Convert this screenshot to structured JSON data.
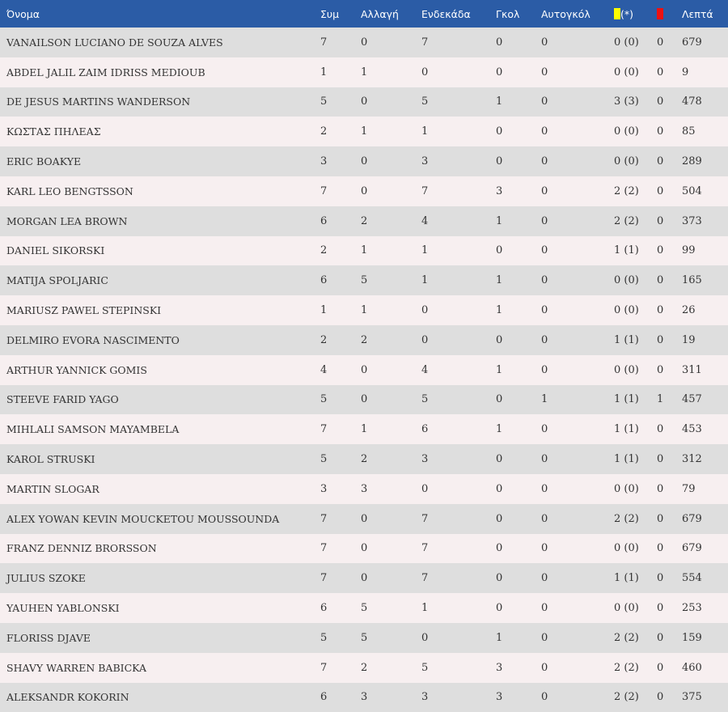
{
  "headers": {
    "name": "Όνομα",
    "appearances": "Συμ",
    "substitutions": "Αλλαγή",
    "starts": "Ενδεκάδα",
    "goals": "Γκολ",
    "own_goals": "Αυτογκόλ",
    "yellow_suffix": "(*)",
    "minutes": "Λεπτά"
  },
  "colors": {
    "header_bg": "#2b5ca6",
    "row_odd": "#dedede",
    "row_even": "#f7eff0",
    "yellow_card": "#ffff00",
    "red_card": "#ee1111"
  },
  "players": [
    {
      "name": "VANAILSON LUCIANO DE SOUZA ALVES",
      "apps": "7",
      "subs": "0",
      "starts": "7",
      "goals": "0",
      "own": "0",
      "yellow": "0 (0)",
      "red": "0",
      "minutes": "679"
    },
    {
      "name": "ABDEL JALIL ZAIM IDRISS MEDIOUB",
      "apps": "1",
      "subs": "1",
      "starts": "0",
      "goals": "0",
      "own": "0",
      "yellow": "0 (0)",
      "red": "0",
      "minutes": "9"
    },
    {
      "name": "DE JESUS MARTINS WANDERSON",
      "apps": "5",
      "subs": "0",
      "starts": "5",
      "goals": "1",
      "own": "0",
      "yellow": "3 (3)",
      "red": "0",
      "minutes": "478"
    },
    {
      "name": "ΚΩΣΤΑΣ ΠΗΛΕΑΣ",
      "apps": "2",
      "subs": "1",
      "starts": "1",
      "goals": "0",
      "own": "0",
      "yellow": "0 (0)",
      "red": "0",
      "minutes": "85"
    },
    {
      "name": "ERIC BOAKYE",
      "apps": "3",
      "subs": "0",
      "starts": "3",
      "goals": "0",
      "own": "0",
      "yellow": "0 (0)",
      "red": "0",
      "minutes": "289"
    },
    {
      "name": "KARL LEO BENGTSSON",
      "apps": "7",
      "subs": "0",
      "starts": "7",
      "goals": "3",
      "own": "0",
      "yellow": "2 (2)",
      "red": "0",
      "minutes": "504"
    },
    {
      "name": "MORGAN LEA BROWN",
      "apps": "6",
      "subs": "2",
      "starts": "4",
      "goals": "1",
      "own": "0",
      "yellow": "2 (2)",
      "red": "0",
      "minutes": "373"
    },
    {
      "name": "DANIEL SIKORSKI",
      "apps": "2",
      "subs": "1",
      "starts": "1",
      "goals": "0",
      "own": "0",
      "yellow": "1 (1)",
      "red": "0",
      "minutes": "99"
    },
    {
      "name": "MATIJA SPOLJARIC",
      "apps": "6",
      "subs": "5",
      "starts": "1",
      "goals": "1",
      "own": "0",
      "yellow": "0 (0)",
      "red": "0",
      "minutes": "165"
    },
    {
      "name": "MARIUSZ PAWEL STEPINSKI",
      "apps": "1",
      "subs": "1",
      "starts": "0",
      "goals": "1",
      "own": "0",
      "yellow": "0 (0)",
      "red": "0",
      "minutes": "26"
    },
    {
      "name": "DELMIRO EVORA NASCIMENTO",
      "apps": "2",
      "subs": "2",
      "starts": "0",
      "goals": "0",
      "own": "0",
      "yellow": "1 (1)",
      "red": "0",
      "minutes": "19"
    },
    {
      "name": "ARTHUR YANNICK GOMIS",
      "apps": "4",
      "subs": "0",
      "starts": "4",
      "goals": "1",
      "own": "0",
      "yellow": "0 (0)",
      "red": "0",
      "minutes": "311"
    },
    {
      "name": "STEEVE FARID YAGO",
      "apps": "5",
      "subs": "0",
      "starts": "5",
      "goals": "0",
      "own": "1",
      "yellow": "1 (1)",
      "red": "1",
      "minutes": "457"
    },
    {
      "name": "MIHLALI SAMSON MAYAMBELA",
      "apps": "7",
      "subs": "1",
      "starts": "6",
      "goals": "1",
      "own": "0",
      "yellow": "1 (1)",
      "red": "0",
      "minutes": "453"
    },
    {
      "name": "KAROL STRUSKI",
      "apps": "5",
      "subs": "2",
      "starts": "3",
      "goals": "0",
      "own": "0",
      "yellow": "1 (1)",
      "red": "0",
      "minutes": "312"
    },
    {
      "name": "MARTIN SLOGAR",
      "apps": "3",
      "subs": "3",
      "starts": "0",
      "goals": "0",
      "own": "0",
      "yellow": "0 (0)",
      "red": "0",
      "minutes": "79"
    },
    {
      "name": "ALEX YOWAN KEVIN MOUCKETOU MOUSSOUNDA",
      "apps": "7",
      "subs": "0",
      "starts": "7",
      "goals": "0",
      "own": "0",
      "yellow": "2 (2)",
      "red": "0",
      "minutes": "679"
    },
    {
      "name": "FRANZ DENNIZ BRORSSON",
      "apps": "7",
      "subs": "0",
      "starts": "7",
      "goals": "0",
      "own": "0",
      "yellow": "0 (0)",
      "red": "0",
      "minutes": "679"
    },
    {
      "name": "JULIUS SZOKE",
      "apps": "7",
      "subs": "0",
      "starts": "7",
      "goals": "0",
      "own": "0",
      "yellow": "1 (1)",
      "red": "0",
      "minutes": "554"
    },
    {
      "name": "YAUHEN YABLONSKI",
      "apps": "6",
      "subs": "5",
      "starts": "1",
      "goals": "0",
      "own": "0",
      "yellow": "0 (0)",
      "red": "0",
      "minutes": "253"
    },
    {
      "name": "FLORISS DJAVE",
      "apps": "5",
      "subs": "5",
      "starts": "0",
      "goals": "1",
      "own": "0",
      "yellow": "2 (2)",
      "red": "0",
      "minutes": "159"
    },
    {
      "name": "SHAVY WARREN BABICKA",
      "apps": "7",
      "subs": "2",
      "starts": "5",
      "goals": "3",
      "own": "0",
      "yellow": "2 (2)",
      "red": "0",
      "minutes": "460"
    },
    {
      "name": "ALEKSANDR KOKORIN",
      "apps": "6",
      "subs": "3",
      "starts": "3",
      "goals": "3",
      "own": "0",
      "yellow": "2 (2)",
      "red": "0",
      "minutes": "375"
    }
  ]
}
